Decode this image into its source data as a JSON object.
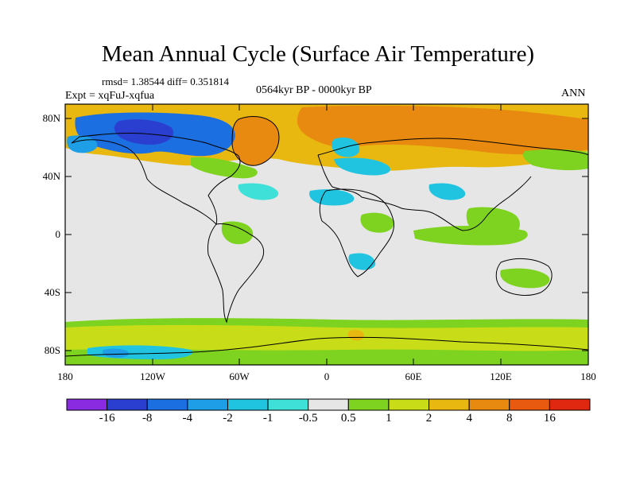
{
  "title": "Mean Annual Cycle (Surface Air Temperature)",
  "stats_line": "rmsd= 1.38544  diff= 0.351814",
  "experiment": "Expt = xqFuJ-xqfua",
  "period": "0564kyr BP - 0000kyr BP",
  "season": "ANN",
  "lat_ticks": [
    "80N",
    "40N",
    "0",
    "40S",
    "80S"
  ],
  "lon_ticks": [
    "180",
    "120W",
    "60W",
    "0",
    "60E",
    "120E",
    "180"
  ],
  "colorbar": {
    "labels": [
      "-16",
      "-8",
      "-4",
      "-2",
      "-1",
      "-0.5",
      "0.5",
      "1",
      "2",
      "4",
      "8",
      "16"
    ],
    "colors": [
      "#8a2be2",
      "#2a3fd0",
      "#1c6fe0",
      "#1e9ee6",
      "#20c4e0",
      "#3fe0d8",
      "#e6e6e6",
      "#7ed320",
      "#c8dc18",
      "#e8b810",
      "#e88a10",
      "#e85a10",
      "#e02810"
    ]
  },
  "map": {
    "land_outline_color": "#000000",
    "background_value_color": "#e6e6e6"
  }
}
